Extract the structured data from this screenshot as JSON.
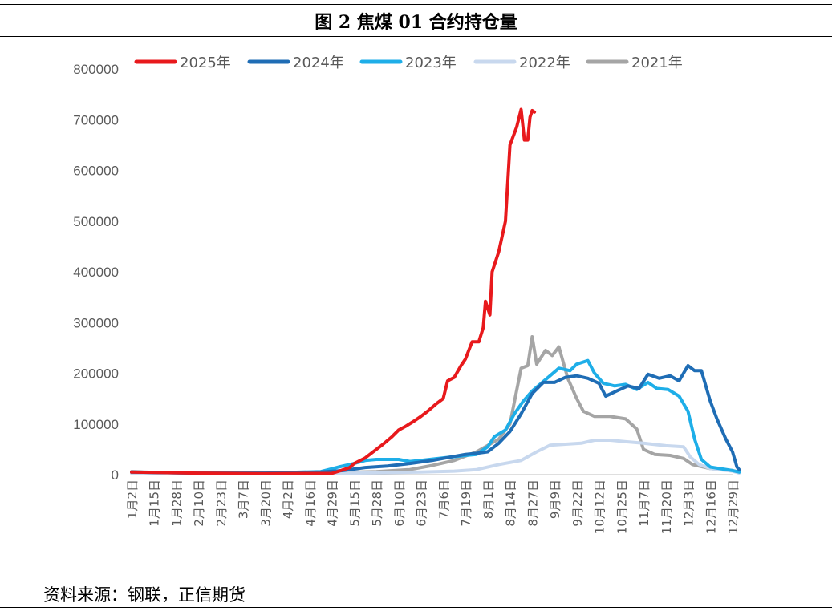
{
  "figure": {
    "title": "图 2   焦煤 01 合约持仓量",
    "source": "资料来源：钢联，正信期货"
  },
  "chart_data": {
    "type": "line",
    "title": "",
    "xlabel": "",
    "ylabel": "",
    "ylim": [
      0,
      800000
    ],
    "yticks": [
      0,
      100000,
      200000,
      300000,
      400000,
      500000,
      600000,
      700000,
      800000
    ],
    "x_ticks": [
      "1月2日",
      "1月15日",
      "1月28日",
      "2月10日",
      "2月23日",
      "3月7日",
      "3月20日",
      "4月2日",
      "4月16日",
      "4月29日",
      "5月15日",
      "5月28日",
      "6月10日",
      "6月23日",
      "7月6日",
      "7月19日",
      "8月1日",
      "8月14日",
      "8月27日",
      "9月9日",
      "9月22日",
      "10月12日",
      "10月25日",
      "11月7日",
      "11月20日",
      "12月3日",
      "12月16日",
      "12月29日"
    ],
    "grid": false,
    "legend_position": "top",
    "series": [
      {
        "name": "2025年",
        "color": "#e8191c",
        "width": 4,
        "points": [
          [
            0,
            5000
          ],
          [
            3,
            3000
          ],
          [
            6,
            2000
          ],
          [
            9,
            2500
          ],
          [
            9.4,
            8000
          ],
          [
            9.8,
            14000
          ],
          [
            10,
            22000
          ],
          [
            10.5,
            33000
          ],
          [
            11,
            50000
          ],
          [
            11.3,
            60000
          ],
          [
            11.7,
            75000
          ],
          [
            12,
            88000
          ],
          [
            12.3,
            95000
          ],
          [
            12.7,
            106000
          ],
          [
            13,
            115000
          ],
          [
            13.3,
            125000
          ],
          [
            13.7,
            140000
          ],
          [
            14,
            150000
          ],
          [
            14.2,
            185000
          ],
          [
            14.5,
            192000
          ],
          [
            14.8,
            215000
          ],
          [
            15,
            228000
          ],
          [
            15.3,
            262000
          ],
          [
            15.6,
            262000
          ],
          [
            15.8,
            290000
          ],
          [
            15.9,
            342000
          ],
          [
            16.1,
            315000
          ],
          [
            16.2,
            400000
          ],
          [
            16.5,
            440000
          ],
          [
            16.8,
            500000
          ],
          [
            17,
            650000
          ],
          [
            17.3,
            685000
          ],
          [
            17.5,
            720000
          ],
          [
            17.65,
            660000
          ],
          [
            17.8,
            660000
          ],
          [
            17.9,
            705000
          ],
          [
            18,
            718000
          ],
          [
            18.1,
            715000
          ]
        ]
      },
      {
        "name": "2024年",
        "color": "#1f6db5",
        "width": 4,
        "points": [
          [
            0,
            5000
          ],
          [
            3,
            3000
          ],
          [
            6,
            3000
          ],
          [
            8.5,
            5000
          ],
          [
            9.5,
            8000
          ],
          [
            10.5,
            14000
          ],
          [
            11.5,
            17000
          ],
          [
            12.5,
            22000
          ],
          [
            13.5,
            28000
          ],
          [
            14.5,
            36000
          ],
          [
            15,
            40000
          ],
          [
            15.5,
            42000
          ],
          [
            16,
            45000
          ],
          [
            16.5,
            62000
          ],
          [
            17,
            85000
          ],
          [
            17.5,
            120000
          ],
          [
            18,
            160000
          ],
          [
            18.5,
            182000
          ],
          [
            19,
            182000
          ],
          [
            19.5,
            192000
          ],
          [
            20,
            195000
          ],
          [
            20.5,
            190000
          ],
          [
            21,
            180000
          ],
          [
            21.3,
            155000
          ],
          [
            21.8,
            165000
          ],
          [
            22.3,
            175000
          ],
          [
            22.8,
            170000
          ],
          [
            23.2,
            198000
          ],
          [
            23.7,
            190000
          ],
          [
            24.2,
            195000
          ],
          [
            24.6,
            185000
          ],
          [
            25,
            215000
          ],
          [
            25.3,
            205000
          ],
          [
            25.6,
            205000
          ],
          [
            26,
            145000
          ],
          [
            26.3,
            110000
          ],
          [
            26.7,
            70000
          ],
          [
            27,
            45000
          ],
          [
            27.2,
            15000
          ],
          [
            27.3,
            10000
          ]
        ]
      },
      {
        "name": "2023年",
        "color": "#1eaee8",
        "width": 4,
        "points": [
          [
            0,
            5000
          ],
          [
            3,
            3000
          ],
          [
            6,
            3000
          ],
          [
            8.5,
            6000
          ],
          [
            9.3,
            15000
          ],
          [
            10,
            22000
          ],
          [
            10.5,
            28000
          ],
          [
            11,
            30000
          ],
          [
            12,
            30000
          ],
          [
            12.5,
            26000
          ],
          [
            13,
            28000
          ],
          [
            14,
            33000
          ],
          [
            15,
            38000
          ],
          [
            15.5,
            40000
          ],
          [
            16,
            55000
          ],
          [
            16.3,
            75000
          ],
          [
            16.8,
            88000
          ],
          [
            17.2,
            120000
          ],
          [
            17.6,
            145000
          ],
          [
            18,
            165000
          ],
          [
            18.4,
            180000
          ],
          [
            18.8,
            195000
          ],
          [
            19.2,
            210000
          ],
          [
            19.7,
            205000
          ],
          [
            20,
            218000
          ],
          [
            20.5,
            225000
          ],
          [
            20.8,
            200000
          ],
          [
            21.2,
            180000
          ],
          [
            21.7,
            175000
          ],
          [
            22.2,
            178000
          ],
          [
            22.7,
            168000
          ],
          [
            23.2,
            182000
          ],
          [
            23.6,
            170000
          ],
          [
            24.1,
            168000
          ],
          [
            24.6,
            155000
          ],
          [
            25,
            125000
          ],
          [
            25.3,
            70000
          ],
          [
            25.6,
            30000
          ],
          [
            26,
            15000
          ],
          [
            27,
            8000
          ],
          [
            27.3,
            5000
          ]
        ]
      },
      {
        "name": "2022年",
        "color": "#c8d8ee",
        "width": 4,
        "points": [
          [
            0,
            3000
          ],
          [
            3,
            2000
          ],
          [
            6,
            2000
          ],
          [
            10,
            3000
          ],
          [
            13,
            5000
          ],
          [
            14.5,
            7000
          ],
          [
            15.5,
            10000
          ],
          [
            16.5,
            20000
          ],
          [
            17.5,
            28000
          ],
          [
            18.2,
            45000
          ],
          [
            18.8,
            58000
          ],
          [
            19.5,
            60000
          ],
          [
            20.2,
            62000
          ],
          [
            20.8,
            68000
          ],
          [
            21.5,
            68000
          ],
          [
            22.2,
            65000
          ],
          [
            23,
            62000
          ],
          [
            24,
            57000
          ],
          [
            24.8,
            55000
          ],
          [
            25.1,
            35000
          ],
          [
            25.5,
            20000
          ],
          [
            26,
            12000
          ],
          [
            27,
            7000
          ],
          [
            27.3,
            3000
          ]
        ]
      },
      {
        "name": "2021年",
        "color": "#a5a5a5",
        "width": 4,
        "points": [
          [
            0,
            6000
          ],
          [
            2,
            3000
          ],
          [
            5,
            3000
          ],
          [
            9,
            4000
          ],
          [
            11,
            6000
          ],
          [
            12.5,
            10000
          ],
          [
            13.5,
            18000
          ],
          [
            14.5,
            28000
          ],
          [
            15.5,
            45000
          ],
          [
            16.5,
            70000
          ],
          [
            17,
            100000
          ],
          [
            17.5,
            210000
          ],
          [
            17.8,
            215000
          ],
          [
            18,
            272000
          ],
          [
            18.2,
            218000
          ],
          [
            18.6,
            245000
          ],
          [
            18.9,
            235000
          ],
          [
            19.2,
            252000
          ],
          [
            19.6,
            190000
          ],
          [
            20,
            150000
          ],
          [
            20.3,
            125000
          ],
          [
            20.8,
            115000
          ],
          [
            21.5,
            115000
          ],
          [
            22.2,
            110000
          ],
          [
            22.7,
            90000
          ],
          [
            23,
            50000
          ],
          [
            23.5,
            40000
          ],
          [
            24.2,
            38000
          ],
          [
            24.8,
            32000
          ],
          [
            25.2,
            20000
          ],
          [
            26,
            12000
          ],
          [
            27,
            8000
          ],
          [
            27.3,
            5000
          ]
        ]
      }
    ]
  }
}
